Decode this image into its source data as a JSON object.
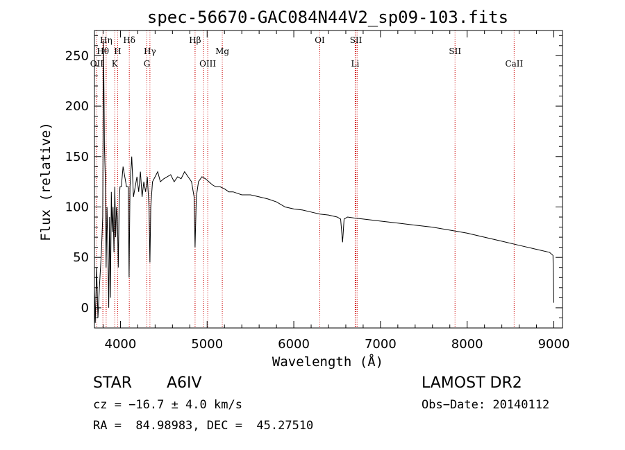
{
  "chart_data": {
    "type": "line",
    "title": "spec-56670-GAC084N44V2_sp09-103.fits",
    "xlabel": "Wavelength (Å)",
    "ylabel": "Flux (relative)",
    "xlim": [
      3700,
      9100
    ],
    "ylim": [
      -20,
      275
    ],
    "xticks": [
      4000,
      5000,
      6000,
      7000,
      8000,
      9000
    ],
    "yticks": [
      0,
      50,
      100,
      150,
      200,
      250
    ],
    "grid": false,
    "line_color": "#000000",
    "marker_color": "#cc0000",
    "series": [
      {
        "x": [
          3700,
          3710,
          3725,
          3740,
          3760,
          3780,
          3795,
          3805,
          3815,
          3825,
          3835,
          3845,
          3855,
          3865,
          3875,
          3885,
          3895,
          3905,
          3915,
          3925,
          3935,
          3945,
          3955,
          3965,
          3975,
          3985,
          3995,
          4010,
          4030,
          4050,
          4070,
          4090,
          4100,
          4110,
          4130,
          4150,
          4170,
          4190,
          4210,
          4230,
          4250,
          4270,
          4290,
          4310,
          4330,
          4340,
          4350,
          4370,
          4400,
          4430,
          4460,
          4500,
          4540,
          4580,
          4620,
          4660,
          4700,
          4740,
          4780,
          4820,
          4850,
          4861,
          4875,
          4900,
          4940,
          4980,
          5020,
          5060,
          5100,
          5150,
          5200,
          5250,
          5300,
          5400,
          5500,
          5600,
          5700,
          5800,
          5900,
          6000,
          6100,
          6200,
          6300,
          6400,
          6500,
          6540,
          6563,
          6580,
          6620,
          6700,
          6800,
          6900,
          7000,
          7200,
          7400,
          7600,
          7800,
          8000,
          8200,
          8400,
          8600,
          8800,
          8950,
          8990,
          9000
        ],
        "y": [
          20,
          -15,
          40,
          -10,
          25,
          55,
          90,
          265,
          160,
          130,
          40,
          100,
          60,
          0,
          90,
          10,
          115,
          75,
          100,
          55,
          120,
          70,
          100,
          90,
          40,
          105,
          120,
          120,
          140,
          130,
          120,
          120,
          30,
          120,
          150,
          110,
          120,
          130,
          115,
          135,
          110,
          125,
          115,
          130,
          100,
          45,
          100,
          125,
          130,
          135,
          125,
          128,
          130,
          132,
          125,
          130,
          128,
          135,
          130,
          125,
          110,
          60,
          110,
          125,
          130,
          128,
          125,
          122,
          120,
          120,
          118,
          115,
          115,
          112,
          112,
          110,
          108,
          105,
          100,
          98,
          97,
          95,
          93,
          92,
          90,
          88,
          65,
          88,
          90,
          89,
          88,
          87,
          86,
          84,
          82,
          80,
          77,
          74,
          70,
          66,
          62,
          58,
          55,
          52,
          5
        ]
      }
    ],
    "line_markers": [
      {
        "label": "Hη",
        "x": 3835,
        "row": 1
      },
      {
        "label": "Hθ",
        "x": 3797,
        "row": 2
      },
      {
        "label": "OII",
        "x": 3727,
        "row": 3
      },
      {
        "label": "Hδ",
        "x": 4102,
        "row": 1
      },
      {
        "label": "H",
        "x": 3968,
        "row": 2
      },
      {
        "label": "K",
        "x": 3934,
        "row": 3
      },
      {
        "label": "Hγ",
        "x": 4340,
        "row": 2
      },
      {
        "label": "G",
        "x": 4305,
        "row": 3
      },
      {
        "label": "Hβ",
        "x": 4861,
        "row": 1
      },
      {
        "label": "Mg",
        "x": 5175,
        "row": 2
      },
      {
        "label": "OIII",
        "x": 5007,
        "row": 3
      },
      {
        "label": "OI",
        "x": 6300,
        "row": 1
      },
      {
        "label": "SII",
        "x": 6717,
        "row": 1
      },
      {
        "label": "Li",
        "x": 6708,
        "row": 3
      },
      {
        "label": "SII",
        "x": 7860,
        "row": 2
      },
      {
        "label": "CaII",
        "x": 8542,
        "row": 3
      }
    ],
    "extra_marker_lines": [
      3798,
      3835,
      4861,
      4959,
      6731
    ]
  },
  "info": {
    "class_label": "STAR",
    "subclass": "A6IV",
    "survey": "LAMOST DR2",
    "cz_line": "cz = −16.7 ± 4.0 km/s",
    "obs_date_line": "Obs−Date: 20140112",
    "radec_line": "RA =  84.98983, DEC =  45.27510"
  }
}
